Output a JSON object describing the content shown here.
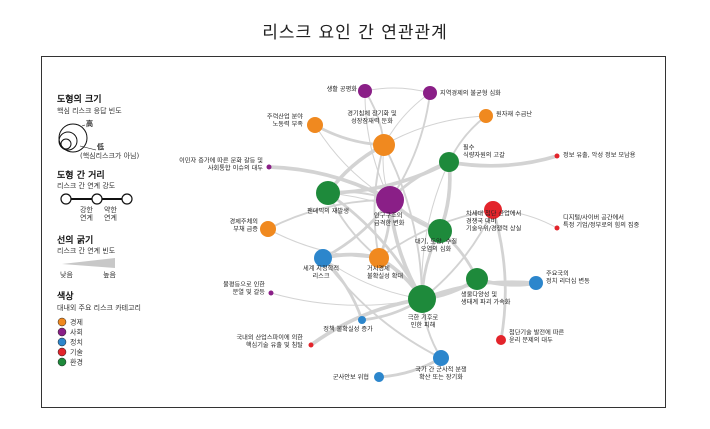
{
  "title": "리스크 요인 간 연관관계",
  "legend": {
    "size": {
      "heading": "도형의 크기",
      "sub": "핵심 리스크 응답 빈도",
      "high": "高",
      "low": "低",
      "note": "(핵심리스크가 아님)"
    },
    "distance": {
      "heading": "도형 간 거리",
      "sub": "리스크 간 연계 강도",
      "strong": "강한",
      "weak": "약한",
      "link": "연계"
    },
    "thickness": {
      "heading": "선의 굵기",
      "sub": "리스크 간 연계 빈도",
      "low": "낮음",
      "high": "높음"
    },
    "color": {
      "heading": "색상",
      "sub": "대내외 주요 리스크 카테고리",
      "categories": [
        {
          "label": "경제",
          "color": "#f0891f"
        },
        {
          "label": "사회",
          "color": "#8a1f87"
        },
        {
          "label": "정치",
          "color": "#2c86cc"
        },
        {
          "label": "기술",
          "color": "#e3242b"
        },
        {
          "label": "환경",
          "color": "#1e8a3b"
        }
      ]
    }
  },
  "nodes": [
    {
      "id": "n1",
      "lines": [
        "생활 공평화"
      ],
      "category": "사회"
    },
    {
      "id": "n2",
      "lines": [
        "지역경제의 불균형 심화"
      ],
      "category": "사회"
    },
    {
      "id": "n3",
      "lines": [
        "주력산업 분야",
        "노동력 부족"
      ],
      "category": "경제"
    },
    {
      "id": "n4",
      "lines": [
        "경기침체 장기화 및",
        "성장잠재력 둔화"
      ],
      "category": "경제"
    },
    {
      "id": "n5",
      "lines": [
        "원자재 수급난"
      ],
      "category": "경제"
    },
    {
      "id": "n6",
      "lines": [
        "이민자 증가에 따른 문화 갈등 및",
        "사회통합 이슈의 대두"
      ],
      "category": "사회"
    },
    {
      "id": "n7",
      "lines": [
        "필수",
        "식량자원의 고갈"
      ],
      "category": "환경"
    },
    {
      "id": "n8",
      "lines": [
        "정보 유출, 악성 정보 모남용"
      ],
      "category": "기술"
    },
    {
      "id": "n9",
      "lines": [
        "팬데믹의 재발생"
      ],
      "category": "환경"
    },
    {
      "id": "n10",
      "lines": [
        "인구구조의",
        "급격한 변화"
      ],
      "category": "사회"
    },
    {
      "id": "n11",
      "lines": [
        "차세대 첨단 산업에서",
        "경쟁국 대비",
        "기술우위/경쟁력 상실"
      ],
      "category": "기술"
    },
    {
      "id": "n12",
      "lines": [
        "디지털/사이버 공간에서",
        "특정 기업/정부로의 힘의 집중"
      ],
      "category": "기술"
    },
    {
      "id": "n13",
      "lines": [
        "경제주체의",
        "부채 급증"
      ],
      "category": "경제"
    },
    {
      "id": "n14",
      "lines": [
        "대기, 토양, 수질",
        "오염의 심화"
      ],
      "category": "환경"
    },
    {
      "id": "n15",
      "lines": [
        "세계 지정학적",
        "리스크"
      ],
      "category": "정치"
    },
    {
      "id": "n16",
      "lines": [
        "거시경제",
        "불확실성 확대"
      ],
      "category": "경제"
    },
    {
      "id": "n17",
      "lines": [
        "주요국의",
        "정치 리더십 변동"
      ],
      "category": "정치"
    },
    {
      "id": "n18",
      "lines": [
        "불평등으로 인한",
        "분열 및 갈등"
      ],
      "category": "사회"
    },
    {
      "id": "n19",
      "lines": [
        "생물다양성 및",
        "생태계 파괴 가속화"
      ],
      "category": "환경"
    },
    {
      "id": "n20",
      "lines": [
        "극한 기후로",
        "인한 피해"
      ],
      "category": "환경"
    },
    {
      "id": "n21",
      "lines": [
        "정책 불확실성 증가"
      ],
      "category": "정치"
    },
    {
      "id": "n22",
      "lines": [
        "첨단기술 발전에 따른",
        "윤리 문제의 대두"
      ],
      "category": "기술"
    },
    {
      "id": "n23",
      "lines": [
        "국내외 산업스파이에 의한",
        "핵심기술 유출 및 침탈"
      ],
      "category": "기술"
    },
    {
      "id": "n24",
      "lines": [
        "국가 간 군사적 분쟁",
        "확산 또는 장기화"
      ],
      "category": "정치"
    },
    {
      "id": "n25",
      "lines": [
        "군사안보 위협"
      ],
      "category": "정치"
    }
  ],
  "edges": [
    [
      "n10",
      "n4"
    ],
    [
      "n10",
      "n9"
    ],
    [
      "n10",
      "n16"
    ],
    [
      "n10",
      "n20"
    ],
    [
      "n10",
      "n3"
    ],
    [
      "n10",
      "n13"
    ],
    [
      "n10",
      "n7"
    ],
    [
      "n10",
      "n14"
    ],
    [
      "n10",
      "n1"
    ],
    [
      "n10",
      "n2"
    ],
    [
      "n10",
      "n15"
    ],
    [
      "n10",
      "n6"
    ],
    [
      "n4",
      "n5"
    ],
    [
      "n4",
      "n16"
    ],
    [
      "n4",
      "n3"
    ],
    [
      "n4",
      "n9"
    ],
    [
      "n4",
      "n2"
    ],
    [
      "n4",
      "n1"
    ],
    [
      "n9",
      "n20"
    ],
    [
      "n9",
      "n7"
    ],
    [
      "n9",
      "n14"
    ],
    [
      "n9",
      "n16"
    ],
    [
      "n20",
      "n14"
    ],
    [
      "n20",
      "n19"
    ],
    [
      "n20",
      "n7"
    ],
    [
      "n20",
      "n24"
    ],
    [
      "n20",
      "n21"
    ],
    [
      "n20",
      "n16"
    ],
    [
      "n20",
      "n15"
    ],
    [
      "n20",
      "n11"
    ],
    [
      "n20",
      "n17"
    ],
    [
      "n20",
      "n23"
    ],
    [
      "n20",
      "n18"
    ],
    [
      "n20",
      "n4"
    ],
    [
      "n14",
      "n19"
    ],
    [
      "n14",
      "n7"
    ],
    [
      "n11",
      "n12"
    ],
    [
      "n11",
      "n16"
    ],
    [
      "n11",
      "n22"
    ],
    [
      "n16",
      "n15"
    ],
    [
      "n16",
      "n13"
    ],
    [
      "n15",
      "n24"
    ],
    [
      "n15",
      "n21"
    ],
    [
      "n7",
      "n8"
    ],
    [
      "n1",
      "n2"
    ],
    [
      "n5",
      "n7"
    ],
    [
      "n24",
      "n25"
    ],
    [
      "n19",
      "n17"
    ],
    [
      "n4",
      "n20"
    ]
  ]
}
